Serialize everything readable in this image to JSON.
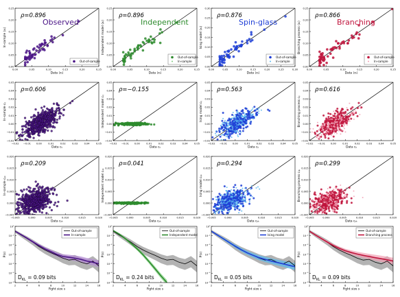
{
  "colors": {
    "observed": "#4a1486",
    "observed_light": "#b58ad6",
    "independent": "#2e8b2e",
    "independent_light": "#7ccd7c",
    "ising": "#1f3fd6",
    "ising_light": "#59b9ef",
    "branching": "#c0143c",
    "branching_light": "#f2a0b4",
    "gray_band": "#9a9a9a",
    "axis": "#000000"
  },
  "models": [
    {
      "key": "observed",
      "name": "Observed",
      "ylabel_prefix": "In-sample"
    },
    {
      "key": "independent",
      "name": "Independent",
      "ylabel_prefix": "Independent model"
    },
    {
      "key": "ising",
      "name": "Spin-glass",
      "ylabel_prefix": "Ising model"
    },
    {
      "key": "branching",
      "name": "Branching",
      "ylabel_prefix": "Branching process"
    }
  ],
  "chart_data": [
    {
      "id": "r1c1",
      "type": "scatter",
      "row": 1,
      "col": 1,
      "rho": "ρ=0.896",
      "label": "Observed",
      "xlabel": "Data ⟨xᵢ⟩",
      "ylabel": "In-sample ⟨xᵢ⟩",
      "xlim": [
        0,
        0.25
      ],
      "ylim": [
        0,
        0.25
      ],
      "xticks": [
        "0.00",
        "0.05",
        "0.10",
        "0.15",
        "0.20",
        "0.25"
      ],
      "yticks": [
        "0.00",
        "0.05",
        "0.10",
        "0.15",
        "0.20",
        "0.25"
      ],
      "legend": [
        "Out-of-sample"
      ],
      "legend_loc": "lower-right",
      "diag": true,
      "cloud": {
        "kind": "marginal",
        "spread": 0.015,
        "n": 60,
        "seed": 11
      }
    },
    {
      "id": "r1c2",
      "type": "scatter",
      "row": 1,
      "col": 2,
      "rho": "ρ=0.896",
      "label": "Independent",
      "xlabel": "Data ⟨xᵢ⟩",
      "ylabel": "Independent model ⟨xᵢ⟩",
      "xlim": [
        0,
        0.25
      ],
      "ylim": [
        0,
        0.25
      ],
      "xticks": [
        "0.00",
        "0.05",
        "0.10",
        "0.15",
        "0.20",
        "0.25"
      ],
      "yticks": [
        "0.00",
        "0.05",
        "0.10",
        "0.15",
        "0.20",
        "0.25"
      ],
      "legend": [
        "Out-of-sample",
        "In-sample"
      ],
      "legend_loc": "lower-right",
      "diag": true,
      "cloud": {
        "kind": "marginal",
        "spread": 0.015,
        "n": 60,
        "seed": 12
      }
    },
    {
      "id": "r1c3",
      "type": "scatter",
      "row": 1,
      "col": 3,
      "rho": "ρ=0.876",
      "label": "Spin-glass",
      "xlabel": "Data ⟨xᵢ⟩",
      "ylabel": "Ising model ⟨xᵢ⟩",
      "xlim": [
        0,
        0.3
      ],
      "ylim": [
        0,
        0.3
      ],
      "xticks": [
        "0.00",
        "0.05",
        "0.10",
        "0.15",
        "0.20",
        "0.25",
        "0.30"
      ],
      "yticks": [
        "0.00",
        "0.05",
        "0.10",
        "0.15",
        "0.20",
        "0.25",
        "0.30"
      ],
      "legend": [
        "Out-of-sample",
        "In-sample"
      ],
      "legend_loc": "lower-right",
      "diag": true,
      "cloud": {
        "kind": "marginal",
        "spread": 0.016,
        "n": 60,
        "seed": 13
      }
    },
    {
      "id": "r1c4",
      "type": "scatter",
      "row": 1,
      "col": 4,
      "rho": "ρ=0.866",
      "label": "Branching",
      "xlabel": "Data ⟨xᵢ⟩",
      "ylabel": "Branching process ⟨xᵢ⟩",
      "xlim": [
        0,
        0.25
      ],
      "ylim": [
        0,
        0.25
      ],
      "xticks": [
        "0.00",
        "0.05",
        "0.10",
        "0.15",
        "0.20",
        "0.25"
      ],
      "yticks": [
        "0.00",
        "0.05",
        "0.10",
        "0.15",
        "0.20",
        "0.25"
      ],
      "legend": [
        "Out-of-sample",
        "In-sample"
      ],
      "legend_loc": "lower-right",
      "diag": true,
      "cloud": {
        "kind": "marginal",
        "spread": 0.016,
        "n": 60,
        "seed": 14
      }
    },
    {
      "id": "r2c1",
      "type": "scatter",
      "row": 2,
      "col": 1,
      "rho": "ρ=0.606",
      "xlabel": "Data cᵢⱼ",
      "ylabel": "In-sample cᵢⱼ",
      "xlim": [
        -0.02,
        0.05
      ],
      "ylim": [
        -0.02,
        0.05
      ],
      "xticks": [
        "−0.02",
        "−0.01",
        "0.00",
        "0.01",
        "0.02",
        "0.03",
        "0.04",
        "0.05"
      ],
      "yticks": [
        "−0.02",
        "−0.01",
        "0.00",
        "0.01",
        "0.02",
        "0.03",
        "0.04",
        "0.05"
      ],
      "diag": true,
      "cloud": {
        "kind": "pairwise",
        "slope": 0.8,
        "spread": 0.006,
        "n": 500,
        "seed": 21,
        "layers": "dark"
      }
    },
    {
      "id": "r2c2",
      "type": "scatter",
      "row": 2,
      "col": 2,
      "rho": "ρ=−0.155",
      "xlabel": "Data cᵢⱼ",
      "ylabel": "Independent model cᵢⱼ",
      "xlim": [
        -0.02,
        0.05
      ],
      "ylim": [
        -0.02,
        0.05
      ],
      "xticks": [
        "−0.02",
        "−0.01",
        "0.00",
        "0.01",
        "0.02",
        "0.03",
        "0.04",
        "0.05"
      ],
      "yticks": [
        "−0.02",
        "−0.01",
        "0.00",
        "0.01",
        "0.02",
        "0.03",
        "0.04",
        "0.05"
      ],
      "diag": true,
      "cloud": {
        "kind": "flat",
        "spread": 0.0007,
        "n": 300,
        "seed": 22
      }
    },
    {
      "id": "r2c3",
      "type": "scatter",
      "row": 2,
      "col": 3,
      "rho": "ρ=0.563",
      "xlabel": "Data cᵢⱼ",
      "ylabel": "Ising model cᵢⱼ",
      "xlim": [
        -0.02,
        0.05
      ],
      "ylim": [
        -0.02,
        0.05
      ],
      "xticks": [
        "−0.02",
        "−0.01",
        "0.00",
        "0.01",
        "0.02",
        "0.03",
        "0.04",
        "0.05"
      ],
      "yticks": [
        "−0.02",
        "−0.01",
        "0.00",
        "0.01",
        "0.02",
        "0.03",
        "0.04",
        "0.05"
      ],
      "diag": true,
      "cloud": {
        "kind": "pairwise",
        "slope": 0.75,
        "spread": 0.006,
        "n": 500,
        "seed": 23,
        "layers": "two"
      }
    },
    {
      "id": "r2c4",
      "type": "scatter",
      "row": 2,
      "col": 4,
      "rho": "ρ=0.616",
      "xlabel": "Data cᵢⱼ",
      "ylabel": "Branching process cᵢⱼ",
      "xlim": [
        -0.02,
        0.05
      ],
      "ylim": [
        -0.02,
        0.05
      ],
      "xticks": [
        "−0.02",
        "−0.01",
        "0.00",
        "0.01",
        "0.02",
        "0.03",
        "0.04",
        "0.05"
      ],
      "yticks": [
        "−0.02",
        "−0.01",
        "0.00",
        "0.01",
        "0.02",
        "0.03",
        "0.04",
        "0.05"
      ],
      "diag": true,
      "cloud": {
        "kind": "pairwise",
        "slope": 0.8,
        "spread": 0.006,
        "n": 500,
        "seed": 24,
        "layers": "two"
      }
    },
    {
      "id": "r3c1",
      "type": "scatter",
      "row": 3,
      "col": 1,
      "rho": "ρ=0.209",
      "xlabel": "Data cᵢⱼₖ",
      "ylabel": "In-sample cᵢⱼₖ",
      "xlim": [
        -0.005,
        0.02
      ],
      "ylim": [
        -0.005,
        0.02
      ],
      "xticks": [
        "−0.005",
        "0.000",
        "0.005",
        "0.010",
        "0.015",
        "0.020"
      ],
      "yticks": [
        "−0.005",
        "0.000",
        "0.005",
        "0.010",
        "0.015",
        "0.020"
      ],
      "diag": true,
      "cloud": {
        "kind": "triplet",
        "slope": 0.35,
        "spread": 0.0025,
        "n": 550,
        "seed": 31,
        "layers": "dark"
      }
    },
    {
      "id": "r3c2",
      "type": "scatter",
      "row": 3,
      "col": 2,
      "rho": "ρ=0.041",
      "xlabel": "Data cᵢⱼₖ",
      "ylabel": "Independent model cᵢⱼₖ",
      "xlim": [
        -0.005,
        0.02
      ],
      "ylim": [
        -0.005,
        0.02
      ],
      "xticks": [
        "−0.005",
        "0.000",
        "0.005",
        "0.010",
        "0.015",
        "0.020"
      ],
      "yticks": [
        "−0.005",
        "0.000",
        "0.005",
        "0.010",
        "0.015",
        "0.020"
      ],
      "diag": true,
      "cloud": {
        "kind": "flat",
        "spread": 0.00015,
        "n": 300,
        "seed": 32
      }
    },
    {
      "id": "r3c3",
      "type": "scatter",
      "row": 3,
      "col": 3,
      "rho": "ρ=0.294",
      "xlabel": "Data cᵢⱼₖ",
      "ylabel": "Ising model cᵢⱼₖ",
      "xlim": [
        -0.005,
        0.02
      ],
      "ylim": [
        -0.005,
        0.02
      ],
      "xticks": [
        "−0.005",
        "0.000",
        "0.005",
        "0.010",
        "0.015",
        "0.020"
      ],
      "yticks": [
        "−0.005",
        "0.000",
        "0.005",
        "0.010",
        "0.015",
        "0.020"
      ],
      "diag": true,
      "cloud": {
        "kind": "triplet",
        "slope": 0.4,
        "spread": 0.0022,
        "n": 550,
        "seed": 33,
        "layers": "two"
      }
    },
    {
      "id": "r3c4",
      "type": "scatter",
      "row": 3,
      "col": 4,
      "rho": "ρ=0.299",
      "xlabel": "Data cᵢⱼₖ",
      "ylabel": "Branching process cᵢⱼₖ",
      "xlim": [
        -0.005,
        0.02
      ],
      "ylim": [
        -0.005,
        0.02
      ],
      "xticks": [
        "−0.005",
        "0.000",
        "0.005",
        "0.010",
        "0.015",
        "0.020"
      ],
      "yticks": [
        "−0.005",
        "0.000",
        "0.005",
        "0.010",
        "0.015",
        "0.020"
      ],
      "diag": true,
      "cloud": {
        "kind": "triplet",
        "slope": 0.4,
        "spread": 0.0022,
        "n": 550,
        "seed": 34,
        "layers": "two"
      }
    },
    {
      "id": "r4c1",
      "type": "line",
      "row": 4,
      "col": 1,
      "xlabel": "Fight size s",
      "ylabel": "P(s)",
      "log_y": true,
      "xlim": [
        2,
        16
      ],
      "ylim_exp": [
        -6,
        0
      ],
      "xticks": [
        "2",
        "4",
        "6",
        "8",
        "10",
        "12",
        "14",
        "16"
      ],
      "yticks": [
        "10⁻⁶",
        "10⁻⁵",
        "10⁻⁴",
        "10⁻³",
        "10⁻²",
        "10⁻¹",
        "10⁰"
      ],
      "legend": [
        "Out-of-sample",
        "In-sample"
      ],
      "legend_loc": "top-right",
      "dkl": "D_KL = 0.09 bits",
      "series": [
        {
          "name": "Out-of-sample",
          "x": [
            2,
            3,
            4,
            5,
            6,
            7,
            8,
            9,
            10,
            11,
            12,
            13,
            14,
            15,
            16
          ],
          "y": [
            0.3,
            0.12,
            0.05,
            0.02,
            0.007,
            0.003,
            0.0015,
            0.0008,
            0.0004,
            0.00025,
            0.0003,
            0.00015,
            0.0001,
            0.0002,
            6e-05
          ]
        },
        {
          "name": "In-sample",
          "x": [
            2,
            3,
            4,
            5,
            6,
            7,
            8,
            9,
            10,
            11,
            12,
            13,
            14,
            15,
            16
          ],
          "y": [
            0.3,
            0.13,
            0.055,
            0.022,
            0.009,
            0.004,
            0.002,
            0.001,
            0.0006,
            0.0005,
            0.0004,
            0.0003,
            0.0002,
            0.00015,
            0.0001
          ]
        }
      ]
    },
    {
      "id": "r4c2",
      "type": "line",
      "row": 4,
      "col": 2,
      "xlabel": "Fight size s",
      "ylabel": "P(s)",
      "log_y": true,
      "xlim": [
        2,
        16
      ],
      "ylim_exp": [
        -6,
        0
      ],
      "xticks": [
        "2",
        "4",
        "6",
        "8",
        "10",
        "12",
        "14",
        "16"
      ],
      "yticks": [
        "10⁻⁶",
        "10⁻⁵",
        "10⁻⁴",
        "10⁻³",
        "10⁻²",
        "10⁻¹",
        "10⁰"
      ],
      "legend": [
        "Out-of-sample",
        "Independent model"
      ],
      "legend_loc": "top-right",
      "dkl": "D_KL = 0.24 bits",
      "series": [
        {
          "name": "Out-of-sample",
          "x": [
            2,
            3,
            4,
            5,
            6,
            7,
            8,
            9,
            10,
            11,
            12,
            13,
            14,
            15,
            16
          ],
          "y": [
            0.3,
            0.12,
            0.05,
            0.02,
            0.007,
            0.003,
            0.0015,
            0.0008,
            0.0004,
            0.00025,
            0.0003,
            0.00015,
            0.0001,
            0.0002,
            6e-05
          ]
        },
        {
          "name": "Independent model",
          "x": [
            2,
            3,
            4,
            5,
            6,
            7,
            8,
            9,
            10,
            11
          ],
          "y": [
            0.35,
            0.15,
            0.05,
            0.015,
            0.004,
            0.0009,
            0.00017,
            3e-05,
            5e-06,
            1e-06
          ]
        }
      ]
    },
    {
      "id": "r4c3",
      "type": "line",
      "row": 4,
      "col": 3,
      "xlabel": "Fight size s",
      "ylabel": "P(s)",
      "log_y": true,
      "xlim": [
        2,
        16
      ],
      "ylim_exp": [
        -6,
        0
      ],
      "xticks": [
        "2",
        "4",
        "6",
        "8",
        "10",
        "12",
        "14",
        "16"
      ],
      "yticks": [
        "10⁻⁶",
        "10⁻⁵",
        "10⁻⁴",
        "10⁻³",
        "10⁻²",
        "10⁻¹",
        "10⁰"
      ],
      "legend": [
        "Out-of-sample",
        "Ising model"
      ],
      "legend_loc": "top-right",
      "dkl": "D_KL = 0.05 bits",
      "series": [
        {
          "name": "Out-of-sample",
          "x": [
            2,
            3,
            4,
            5,
            6,
            7,
            8,
            9,
            10,
            11,
            12,
            13,
            14,
            15,
            16
          ],
          "y": [
            0.3,
            0.12,
            0.05,
            0.02,
            0.007,
            0.003,
            0.0015,
            0.0008,
            0.0004,
            0.00025,
            0.0003,
            0.00015,
            0.0001,
            0.0002,
            6e-05
          ]
        },
        {
          "name": "Ising model",
          "x": [
            2,
            3,
            4,
            5,
            6,
            7,
            8,
            9,
            10,
            11,
            12,
            13,
            14,
            15,
            16
          ],
          "y": [
            0.3,
            0.12,
            0.048,
            0.019,
            0.0075,
            0.0032,
            0.0015,
            0.0008,
            0.00045,
            0.0003,
            0.0002,
            0.00014,
            0.0001,
            7e-05,
            5e-05
          ]
        }
      ]
    },
    {
      "id": "r4c4",
      "type": "line",
      "row": 4,
      "col": 4,
      "xlabel": "Fight size s",
      "ylabel": "P(s)",
      "log_y": true,
      "xlim": [
        2,
        16
      ],
      "ylim_exp": [
        -6,
        0
      ],
      "xticks": [
        "2",
        "4",
        "6",
        "8",
        "10",
        "12",
        "14",
        "16"
      ],
      "yticks": [
        "10⁻⁶",
        "10⁻⁵",
        "10⁻⁴",
        "10⁻³",
        "10⁻²",
        "10⁻¹",
        "10⁰"
      ],
      "legend": [
        "Out-of-sample",
        "Branching process"
      ],
      "legend_loc": "top-right",
      "dkl": "D_KL = 0.09 bits",
      "series": [
        {
          "name": "Out-of-sample",
          "x": [
            2,
            3,
            4,
            5,
            6,
            7,
            8,
            9,
            10,
            11,
            12,
            13,
            14,
            15,
            16
          ],
          "y": [
            0.3,
            0.12,
            0.05,
            0.02,
            0.007,
            0.003,
            0.0015,
            0.0008,
            0.0004,
            0.00025,
            0.0003,
            0.00015,
            0.0001,
            0.0002,
            6e-05
          ]
        },
        {
          "name": "Branching process",
          "x": [
            2,
            3,
            4,
            5,
            6,
            7,
            8,
            9,
            10,
            11,
            12,
            13,
            14,
            15,
            16
          ],
          "y": [
            0.3,
            0.12,
            0.05,
            0.021,
            0.009,
            0.0045,
            0.0025,
            0.0016,
            0.0011,
            0.0008,
            0.0006,
            0.00045,
            0.00035,
            0.00027,
            0.0002
          ]
        }
      ]
    }
  ]
}
